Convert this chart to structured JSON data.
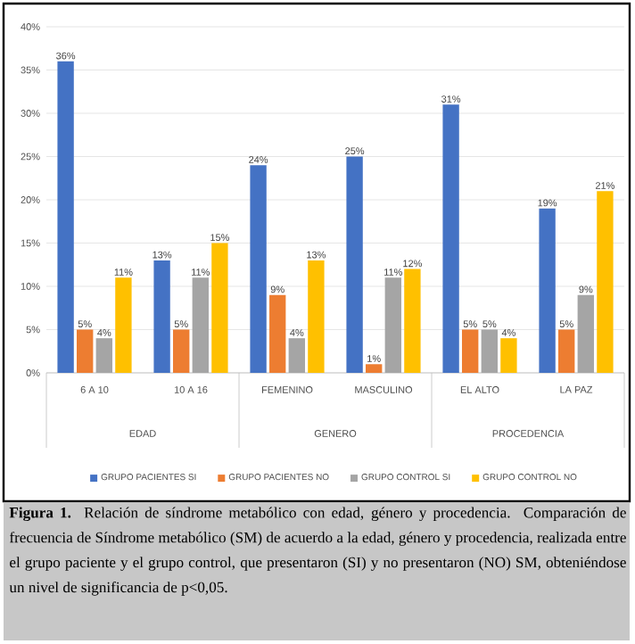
{
  "chart_data": {
    "type": "bar",
    "categories": [
      "6 A 10",
      "10 A 16",
      "FEMENINO",
      "MASCULINO",
      "EL ALTO",
      "LA PAZ"
    ],
    "series": [
      {
        "name": "GRUPO PACIENTES SI",
        "color": "#4472c4",
        "values": [
          36,
          13,
          24,
          25,
          31,
          19
        ],
        "value_labels": [
          "36%",
          "13%",
          "24%",
          "25%",
          "31%",
          "19%"
        ]
      },
      {
        "name": "GRUPO PACIENTES NO",
        "color": "#ed7d31",
        "values": [
          5,
          5,
          9,
          1,
          5,
          5
        ],
        "value_labels": [
          "5%",
          "5%",
          "9%",
          "1%",
          "5%",
          "5%"
        ]
      },
      {
        "name": "GRUPO CONTROL SI",
        "color": "#a5a5a5",
        "values": [
          4,
          11,
          4,
          11,
          5,
          9
        ],
        "value_labels": [
          "4%",
          "11%",
          "4%",
          "11%",
          "5%",
          "9%"
        ]
      },
      {
        "name": "GRUPO CONTROL NO",
        "color": "#ffc000",
        "values": [
          11,
          15,
          13,
          12,
          4,
          21
        ],
        "value_labels": [
          "11%",
          "15%",
          "13%",
          "12%",
          "4%",
          "21%"
        ]
      }
    ],
    "ylim": [
      0,
      40
    ],
    "yticks": [
      {
        "value": 0,
        "label": "0%"
      },
      {
        "value": 5,
        "label": "5%"
      },
      {
        "value": 10,
        "label": "10%"
      },
      {
        "value": 15,
        "label": "15%"
      },
      {
        "value": 20,
        "label": "20%"
      },
      {
        "value": 25,
        "label": "25%"
      },
      {
        "value": 30,
        "label": "30%"
      },
      {
        "value": 35,
        "label": "35%"
      },
      {
        "value": 40,
        "label": "40%"
      }
    ],
    "grid": "y",
    "legend": "bottom",
    "annotations": [
      "EDAD",
      "GENERO",
      "PROCEDENCIA",
      "**Figura 1.** Relación de síndrome metabólico con edad, género y procedencia. Comparación de frecuencia de Síndrome metabólico (SM) de acuerdo a la edad, género y procedencia, realizada entre el grupo paciente y el grupo control, que presentaron (SI) y no presentaron (NO) SM, obteniéndose un nivel de significancia de p<0,05."
    ]
  }
}
